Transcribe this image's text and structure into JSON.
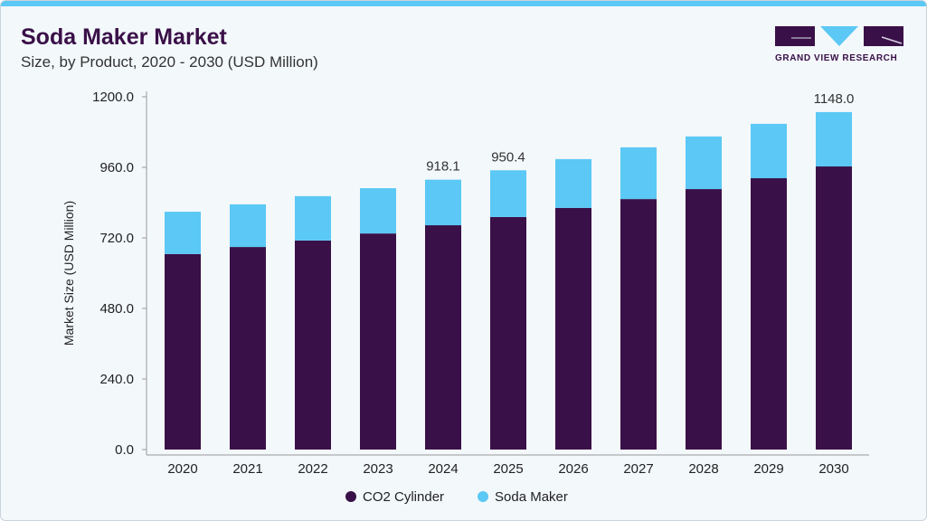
{
  "header": {
    "title": "Soda Maker Market",
    "subtitle": "Size, by Product, 2020 - 2030 (USD Million)",
    "logo_text": "GRAND VIEW RESEARCH"
  },
  "colors": {
    "co2": "#3a1048",
    "soda": "#5bc8f5",
    "accent": "#5bc8f5"
  },
  "chart_data": {
    "type": "bar",
    "stacked": true,
    "categories": [
      "2020",
      "2021",
      "2022",
      "2023",
      "2024",
      "2025",
      "2026",
      "2027",
      "2028",
      "2029",
      "2030"
    ],
    "series": [
      {
        "name": "CO2 Cylinder",
        "values": [
          665,
          689,
          711,
          735,
          763,
          791,
          822,
          852,
          886,
          923,
          963
        ]
      },
      {
        "name": "Soda Maker",
        "values": [
          144,
          145,
          151,
          154,
          155,
          159,
          166,
          176,
          179,
          185,
          185
        ]
      }
    ],
    "data_labels": {
      "2024": "918.1",
      "2025": "950.4",
      "2030": "1148.0"
    },
    "ylabel": "Market Size (USD Million)",
    "xlabel": "",
    "ylim": [
      0,
      1200
    ],
    "yticks": [
      "0.0",
      "240.0",
      "480.0",
      "720.0",
      "960.0",
      "1200.0"
    ],
    "grid": false,
    "legend": "bottom"
  }
}
